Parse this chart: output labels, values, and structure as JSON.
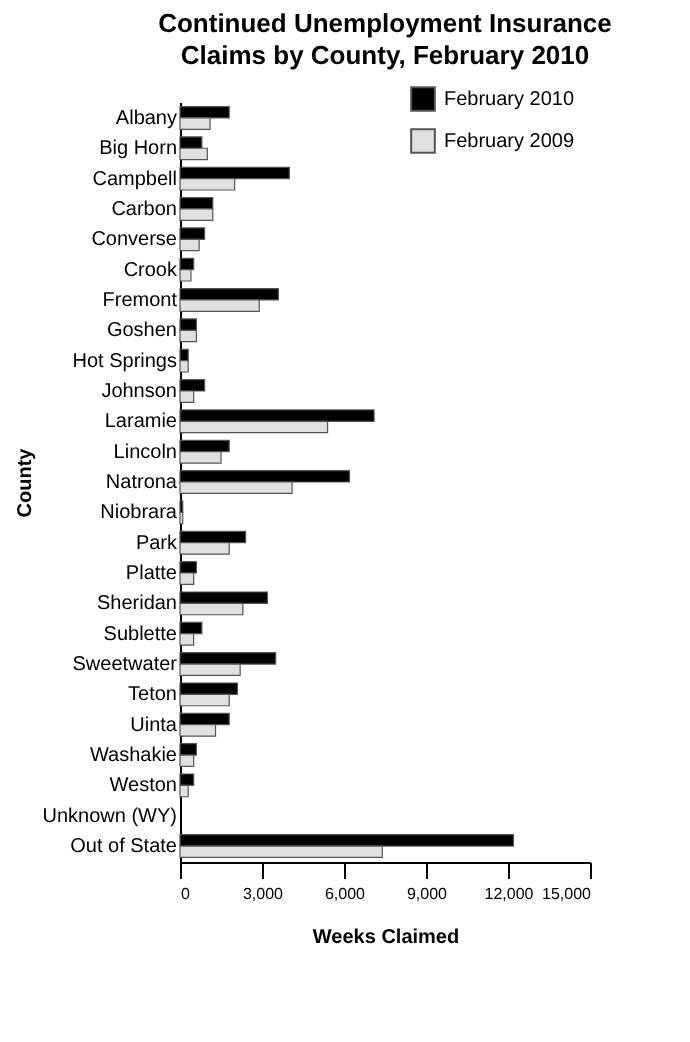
{
  "chart_data": {
    "type": "bar",
    "orientation": "horizontal",
    "title": "Continued Unemployment Insurance Claims by County, February 2010",
    "xlabel": "Weeks Claimed",
    "ylabel": "County",
    "categories": [
      "Albany",
      "Big Horn",
      "Campbell",
      "Carbon",
      "Converse",
      "Crook",
      "Fremont",
      "Goshen",
      "Hot Springs",
      "Johnson",
      "Laramie",
      "Lincoln",
      "Natrona",
      "Niobrara",
      "Park",
      "Platte",
      "Sheridan",
      "Sublette",
      "Sweetwater",
      "Teton",
      "Uinta",
      "Washakie",
      "Weston",
      "Unknown (WY)",
      "Out of State"
    ],
    "series": [
      {
        "name": "February 2010",
        "color": "#000000",
        "values": [
          1800,
          800,
          4000,
          1200,
          900,
          500,
          3600,
          600,
          300,
          900,
          7100,
          1800,
          6200,
          100,
          2400,
          600,
          3200,
          800,
          3500,
          2100,
          1800,
          600,
          500,
          null,
          12200
        ]
      },
      {
        "name": "February 2009",
        "color": "#e0e0e0",
        "values": [
          1100,
          1000,
          2000,
          1200,
          700,
          400,
          2900,
          600,
          300,
          500,
          5400,
          1500,
          4100,
          100,
          1800,
          500,
          2300,
          500,
          2200,
          1800,
          1300,
          500,
          300,
          null,
          7400
        ]
      }
    ],
    "xlim": [
      0,
      15000
    ],
    "xticks": [
      {
        "value": 0,
        "label": "0"
      },
      {
        "value": 3000,
        "label": "3,000"
      },
      {
        "value": 6000,
        "label": "6,000"
      },
      {
        "value": 9000,
        "label": "9,000"
      },
      {
        "value": 12000,
        "label": "12,000"
      },
      {
        "value": 15000,
        "label": "15,000"
      }
    ],
    "grid": false,
    "legend": "top right"
  }
}
